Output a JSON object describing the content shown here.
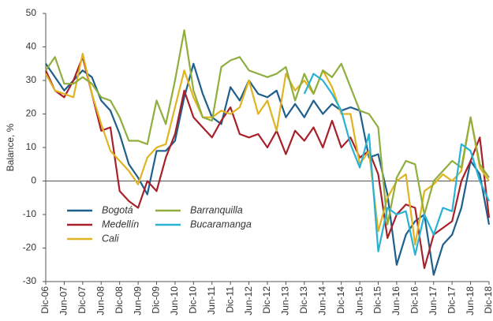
{
  "chart_data": {
    "type": "line",
    "ylabel": "Balance, %",
    "categories": [
      "Dic-06",
      null,
      "Jun-07",
      null,
      "Dic-07",
      null,
      "Jun-08",
      null,
      "Dic-08",
      null,
      "Jun-09",
      null,
      "Dic-09",
      null,
      "Jun-10",
      null,
      "Dic-10",
      null,
      "Jun-11",
      null,
      "Dic-11",
      null,
      "Jun-12",
      null,
      "Dic-12",
      null,
      "Jun-13",
      null,
      "Dic-13",
      null,
      "Jun-14",
      null,
      "Dic-14",
      null,
      "Jun-15",
      null,
      "Dic-15",
      null,
      "Jun-16",
      null,
      "Dic-16",
      null,
      "Jun-17",
      null,
      "Dic-17",
      null,
      "Jun-18",
      null,
      "Dic-18"
    ],
    "series": [
      {
        "name": "Bogotá",
        "color": "#1f5f8b",
        "values": [
          35,
          31,
          27,
          30,
          33,
          31,
          24,
          21,
          14,
          5,
          1,
          -4,
          9,
          9,
          12,
          25,
          35,
          26,
          19,
          17,
          28,
          24,
          30,
          26,
          25,
          27,
          19,
          23,
          19,
          24,
          20,
          23,
          21,
          22,
          21,
          7,
          8,
          -4,
          -25,
          -16,
          -12,
          -10,
          -28,
          -19,
          -16,
          -8,
          6,
          2,
          -13
        ]
      },
      {
        "name": "Medellín",
        "color": "#a8202a",
        "values": [
          33,
          27,
          25,
          30,
          37,
          26,
          15,
          16,
          -3,
          -6,
          -8,
          0,
          -3,
          7,
          14,
          27,
          19,
          16,
          13,
          18,
          22,
          14,
          13,
          14,
          10,
          15,
          8,
          15,
          12,
          16,
          10,
          18,
          10,
          13,
          7,
          9,
          2,
          -17,
          -10,
          -7,
          -8,
          -26,
          -16,
          -14,
          -12,
          0,
          6,
          13,
          -11
        ]
      },
      {
        "name": "Cali",
        "color": "#e0b320",
        "values": [
          32,
          27,
          26,
          25,
          38,
          26,
          17,
          9,
          6,
          3,
          -1,
          7,
          10,
          11,
          22,
          33,
          25,
          19,
          19,
          21,
          20,
          22,
          30,
          20,
          24,
          15,
          32,
          27,
          30,
          26,
          33,
          28,
          20,
          20,
          5,
          9,
          -15,
          -5,
          0,
          2,
          -19,
          -3,
          -1,
          2,
          0,
          3,
          19,
          4,
          0
        ]
      },
      {
        "name": "Barranquilla",
        "color": "#8fae3e",
        "values": [
          33,
          37,
          29,
          29,
          31,
          29,
          25,
          24,
          19,
          12,
          12,
          11,
          24,
          17,
          30,
          45,
          27,
          19,
          18,
          34,
          36,
          37,
          33,
          32,
          31,
          32,
          34,
          24,
          32,
          26,
          33,
          31,
          35,
          28,
          21,
          20,
          16,
          -13,
          1,
          6,
          5,
          -10,
          0,
          3,
          6,
          4,
          19,
          5,
          1
        ]
      },
      {
        "name": "Bucaramanga",
        "color": "#29b2d4",
        "values": [
          null,
          null,
          null,
          null,
          null,
          null,
          null,
          null,
          null,
          null,
          null,
          null,
          null,
          null,
          null,
          null,
          null,
          null,
          null,
          null,
          null,
          null,
          null,
          null,
          null,
          null,
          null,
          null,
          26,
          32,
          30,
          26,
          21,
          11,
          4,
          14,
          -21,
          -8,
          -10,
          -9,
          -22,
          -10,
          -16,
          -8,
          -9,
          11,
          9,
          0,
          -6
        ]
      }
    ],
    "ylim": [
      -30,
      50
    ],
    "yticks": [
      -30,
      -20,
      -10,
      0,
      10,
      20,
      30,
      40,
      50
    ]
  }
}
